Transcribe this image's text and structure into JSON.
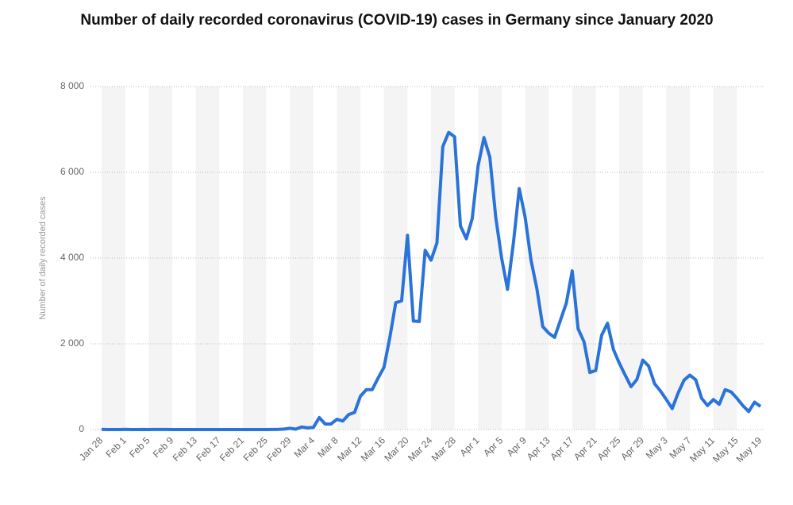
{
  "chart_data": {
    "type": "line",
    "title": "Number of daily recorded coronavirus (COVID-19) cases in Germany since January 2020",
    "y_label": "Number of daily recorded cases",
    "categories": [
      "Jan 28",
      null,
      null,
      null,
      "Feb 1",
      null,
      null,
      null,
      "Feb 5",
      null,
      null,
      null,
      "Feb 9",
      null,
      null,
      null,
      "Feb 13",
      null,
      null,
      null,
      "Feb 17",
      null,
      null,
      null,
      "Feb 21",
      null,
      null,
      null,
      "Feb 25",
      null,
      null,
      null,
      "Feb 29",
      null,
      null,
      null,
      "Mar 4",
      null,
      null,
      null,
      "Mar 8",
      null,
      null,
      null,
      "Mar 12",
      null,
      null,
      null,
      "Mar 16",
      null,
      null,
      null,
      "Mar 20",
      null,
      null,
      null,
      "Mar 24",
      null,
      null,
      null,
      "Mar 28",
      null,
      null,
      null,
      "Apr 1",
      null,
      null,
      null,
      "Apr 5",
      null,
      null,
      null,
      "Apr 9",
      null,
      null,
      null,
      "Apr 13",
      null,
      null,
      null,
      "Apr 17",
      null,
      null,
      null,
      "Apr 21",
      null,
      null,
      null,
      "Apr 25",
      null,
      null,
      null,
      "Apr 29",
      null,
      null,
      null,
      "May 3",
      null,
      null,
      null,
      "May 7",
      null,
      null,
      null,
      "May 11",
      null,
      null,
      null,
      "May 15",
      null,
      null,
      null,
      "May 19"
    ],
    "values": [
      4,
      0,
      1,
      0,
      4,
      1,
      0,
      2,
      0,
      2,
      2,
      2,
      0,
      0,
      0,
      0,
      0,
      0,
      0,
      0,
      0,
      0,
      0,
      0,
      0,
      0,
      0,
      0,
      1,
      2,
      4,
      12,
      30,
      10,
      60,
      40,
      50,
      280,
      130,
      130,
      240,
      200,
      350,
      400,
      780,
      930,
      930,
      1200,
      1450,
      2150,
      2960,
      3000,
      4530,
      2530,
      2520,
      4180,
      3950,
      4350,
      6600,
      6930,
      6830,
      4750,
      4450,
      4920,
      6150,
      6810,
      6350,
      4950,
      4000,
      3270,
      4350,
      5620,
      4950,
      3950,
      3280,
      2400,
      2250,
      2150,
      2550,
      2950,
      3700,
      2350,
      2050,
      1330,
      1380,
      2200,
      2480,
      1870,
      1550,
      1270,
      1000,
      1170,
      1620,
      1480,
      1070,
      900,
      700,
      490,
      850,
      1150,
      1270,
      1160,
      730,
      560,
      700,
      590,
      930,
      880,
      730,
      560,
      420,
      640,
      540
    ],
    "color": "#2a73d9",
    "ylim": [
      0,
      8000
    ],
    "yticks": [
      0,
      {
        "value": 2000,
        "label": "2 000"
      },
      {
        "value": 4000,
        "label": "4 000"
      },
      {
        "value": 6000,
        "label": "6 000"
      },
      {
        "value": 8000,
        "label": "8 000"
      }
    ],
    "grid": true
  }
}
